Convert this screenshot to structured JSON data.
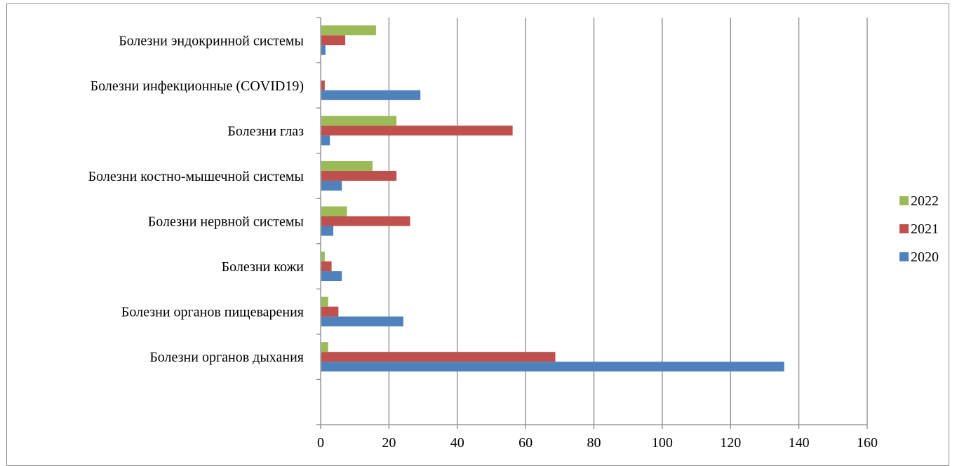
{
  "chart_data": {
    "type": "bar",
    "orientation": "horizontal",
    "categories": [
      "Болезни органов дыхания",
      "Болезни органов пищеварения",
      "Болезни кожи",
      "Болезни нервной системы",
      "Болезни костно-мышечной системы",
      "Болезни глаз",
      "Болезни инфекционные (COVID19)",
      "Болезни эндокринной системы"
    ],
    "series": [
      {
        "name": "2020",
        "color": "#4f81bd",
        "values": [
          135.5,
          24,
          6,
          3.5,
          6,
          2.5,
          29,
          1.2
        ]
      },
      {
        "name": "2021",
        "color": "#c0504d",
        "values": [
          68.5,
          5,
          3,
          26,
          22,
          56,
          1,
          7
        ]
      },
      {
        "name": "2022",
        "color": "#9bbb59",
        "values": [
          2,
          2,
          1,
          7.5,
          15,
          22,
          0,
          16
        ]
      }
    ],
    "xlim": [
      0,
      160
    ],
    "x_ticks": [
      "0",
      "20",
      "40",
      "60",
      "80",
      "100",
      "120",
      "140",
      "160"
    ],
    "grid": "vertical",
    "legend_position": "right",
    "legend": [
      "2022",
      "2021",
      "2020"
    ],
    "title": "",
    "xlabel": "",
    "ylabel": ""
  }
}
